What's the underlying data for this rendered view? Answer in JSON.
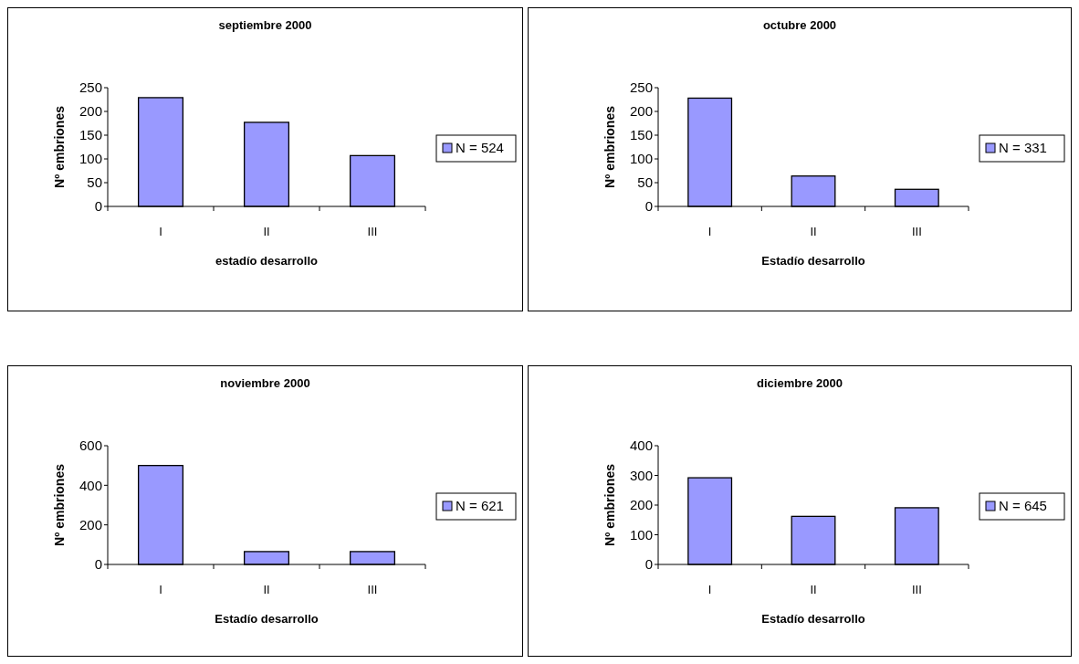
{
  "chart_data": [
    {
      "type": "bar",
      "title": "septiembre 2000",
      "xlabel": "estadío desarrollo",
      "ylabel": "Nº embriones",
      "categories": [
        "I",
        "II",
        "III"
      ],
      "series": [
        {
          "name": "N = 524",
          "color": "#9999ff",
          "values": [
            229,
            177,
            107
          ]
        }
      ],
      "ylim": [
        0,
        250
      ],
      "yticks": [
        0,
        50,
        100,
        150,
        200,
        250
      ],
      "legend": "right",
      "grid": false
    },
    {
      "type": "bar",
      "title": "octubre 2000",
      "xlabel": "Estadío desarrollo",
      "ylabel": "Nº embriones",
      "categories": [
        "I",
        "II",
        "III"
      ],
      "series": [
        {
          "name": "N = 331",
          "color": "#9999ff",
          "values": [
            228,
            64,
            36
          ]
        }
      ],
      "ylim": [
        0,
        250
      ],
      "yticks": [
        0,
        50,
        100,
        150,
        200,
        250
      ],
      "legend": "right",
      "grid": false
    },
    {
      "type": "bar",
      "title": "noviembre 2000",
      "xlabel": "Estadío desarrollo",
      "ylabel": "Nº embriones",
      "categories": [
        "I",
        "II",
        "III"
      ],
      "series": [
        {
          "name": "N = 621",
          "color": "#9999ff",
          "values": [
            500,
            65,
            65
          ]
        }
      ],
      "ylim": [
        0,
        600
      ],
      "yticks": [
        0,
        200,
        400,
        600
      ],
      "legend": "right",
      "grid": false
    },
    {
      "type": "bar",
      "title": "diciembre 2000",
      "xlabel": "Estadío desarrollo",
      "ylabel": "Nº embriones",
      "categories": [
        "I",
        "II",
        "III"
      ],
      "series": [
        {
          "name": "N = 645",
          "color": "#9999ff",
          "values": [
            292,
            162,
            191
          ]
        }
      ],
      "ylim": [
        0,
        400
      ],
      "yticks": [
        0,
        100,
        200,
        300,
        400
      ],
      "legend": "right",
      "grid": false
    }
  ]
}
